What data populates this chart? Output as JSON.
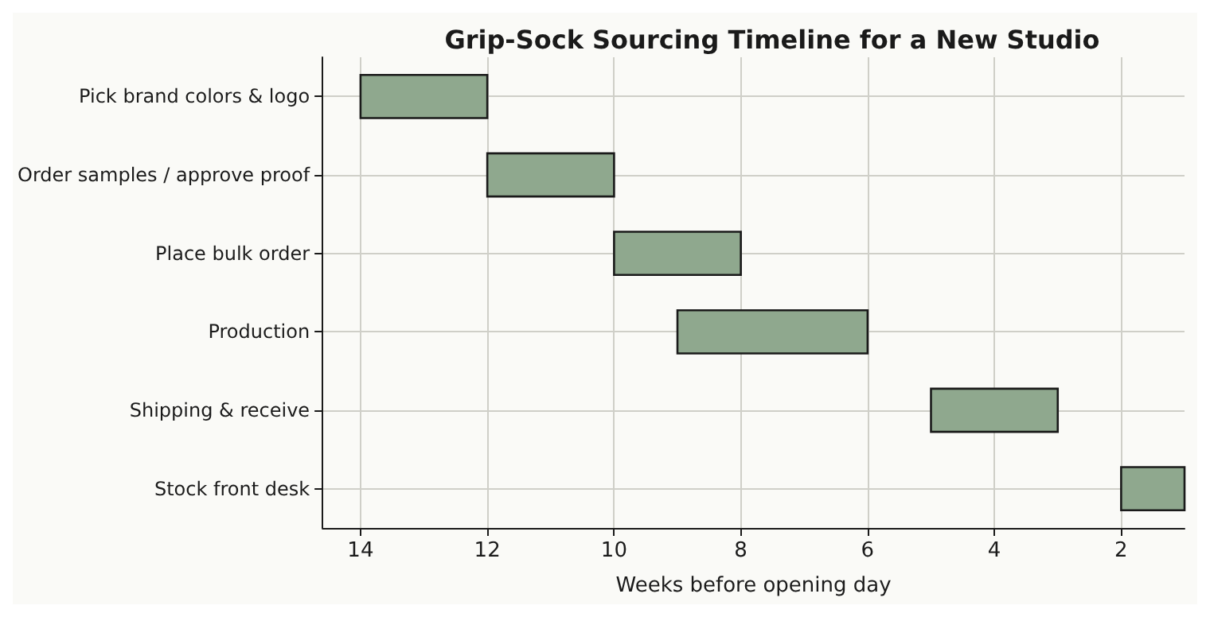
{
  "chart_data": {
    "type": "bar",
    "orientation": "horizontal",
    "title": "Grip-Sock Sourcing Timeline for a New Studio",
    "xlabel": "Weeks before opening day",
    "categories": [
      "Pick brand colors & logo",
      "Order samples / approve proof",
      "Place bulk order",
      "Production",
      "Shipping & receive",
      "Stock front desk"
    ],
    "base": [
      12,
      10,
      8,
      6,
      3,
      1
    ],
    "values": [
      2,
      2,
      2,
      3,
      2,
      1
    ],
    "color": "#8fa88e",
    "xlim": [
      14.6,
      1
    ],
    "xticks": [
      14,
      12,
      10,
      8,
      6,
      4,
      2
    ],
    "grid": true
  }
}
